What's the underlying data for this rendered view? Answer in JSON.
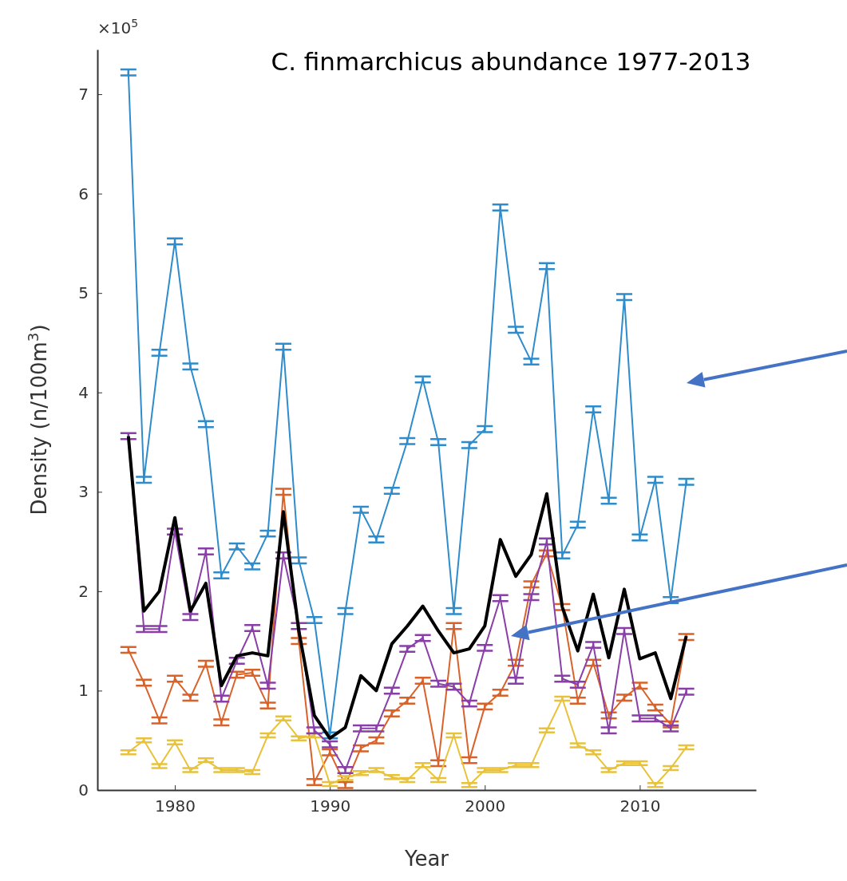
{
  "chart_data": {
    "type": "line",
    "title": "C. finmarchicus abundance 1977-2013",
    "xlabel": "Year",
    "ylabel": "Density (n/100m$^{3}$)",
    "annotations": [
      "×10$^{5}$"
    ],
    "x": [
      1977,
      1978,
      1979,
      1980,
      1981,
      1982,
      1983,
      1984,
      1985,
      1986,
      1987,
      1988,
      1989,
      1990,
      1991,
      1992,
      1993,
      1994,
      1995,
      1996,
      1997,
      1998,
      1999,
      2000,
      2001,
      2002,
      2003,
      2004,
      2005,
      2006,
      2007,
      2008,
      2009,
      2010,
      2011,
      2012,
      2013
    ],
    "xlim": [
      1975,
      2017.5
    ],
    "xticks": [
      1980,
      1990,
      2000,
      2010
    ],
    "ylim": [
      0,
      7.45
    ],
    "yticks": [
      0,
      1,
      2,
      3,
      4,
      5,
      6,
      7
    ],
    "grid": false,
    "marker": "none",
    "line_style": "solid",
    "series": [
      {
        "color": "#2e8ccc",
        "values": [
          7.22,
          3.12,
          4.4,
          5.52,
          4.26,
          3.68,
          2.16,
          2.45,
          2.25,
          2.58,
          4.46,
          2.31,
          1.71,
          0.55,
          1.8,
          2.82,
          2.52,
          3.01,
          3.51,
          4.13,
          3.5,
          1.8,
          3.47,
          3.63,
          5.86,
          4.63,
          4.31,
          5.27,
          2.36,
          2.67,
          3.83,
          2.91,
          4.96,
          2.54,
          3.12,
          1.91,
          3.1
        ],
        "errors": [
          0.03,
          0.03,
          0.03,
          0.03,
          0.03,
          0.03,
          0.03,
          0.03,
          0.03,
          0.03,
          0.03,
          0.03,
          0.03,
          0.03,
          0.03,
          0.03,
          0.03,
          0.03,
          0.03,
          0.03,
          0.03,
          0.03,
          0.03,
          0.03,
          0.03,
          0.03,
          0.03,
          0.03,
          0.03,
          0.03,
          0.03,
          0.03,
          0.03,
          0.03,
          0.03,
          0.03,
          0.03
        ]
      },
      {
        "color": "#d9622b",
        "values": [
          1.41,
          1.08,
          0.7,
          1.12,
          0.93,
          1.27,
          0.68,
          1.16,
          1.18,
          0.85,
          3.0,
          1.5,
          0.08,
          0.38,
          0.05,
          0.42,
          0.5,
          0.77,
          0.9,
          1.1,
          0.27,
          1.65,
          0.3,
          0.84,
          0.98,
          1.28,
          2.07,
          2.38,
          1.84,
          0.9,
          1.28,
          0.75,
          0.93,
          1.05,
          0.83,
          0.66,
          1.54
        ],
        "errors": [
          0.03,
          0.03,
          0.03,
          0.03,
          0.03,
          0.03,
          0.03,
          0.03,
          0.03,
          0.03,
          0.03,
          0.03,
          0.03,
          0.03,
          0.03,
          0.03,
          0.03,
          0.03,
          0.03,
          0.03,
          0.03,
          0.03,
          0.03,
          0.03,
          0.03,
          0.03,
          0.03,
          0.03,
          0.03,
          0.03,
          0.03,
          0.03,
          0.03,
          0.03,
          0.03,
          0.03,
          0.03
        ]
      },
      {
        "color": "#e8c23a",
        "values": [
          0.38,
          0.5,
          0.24,
          0.48,
          0.2,
          0.3,
          0.2,
          0.2,
          0.18,
          0.55,
          0.72,
          0.52,
          0.55,
          0.06,
          0.12,
          0.17,
          0.2,
          0.13,
          0.1,
          0.25,
          0.1,
          0.55,
          0.05,
          0.2,
          0.2,
          0.25,
          0.25,
          0.6,
          0.92,
          0.45,
          0.38,
          0.2,
          0.27,
          0.27,
          0.05,
          0.22,
          0.43
        ],
        "errors": [
          0.02,
          0.02,
          0.02,
          0.02,
          0.02,
          0.02,
          0.02,
          0.02,
          0.02,
          0.02,
          0.02,
          0.02,
          0.02,
          0.02,
          0.02,
          0.02,
          0.02,
          0.02,
          0.02,
          0.02,
          0.02,
          0.02,
          0.02,
          0.02,
          0.02,
          0.02,
          0.02,
          0.02,
          0.02,
          0.02,
          0.02,
          0.02,
          0.02,
          0.02,
          0.02,
          0.02,
          0.02
        ]
      },
      {
        "color": "#8a3fa8",
        "values": [
          3.56,
          1.62,
          1.62,
          2.6,
          1.74,
          2.4,
          0.92,
          1.3,
          1.63,
          1.05,
          2.36,
          1.65,
          0.6,
          0.46,
          0.2,
          0.62,
          0.62,
          1.0,
          1.42,
          1.53,
          1.07,
          1.04,
          0.87,
          1.43,
          1.93,
          1.1,
          1.94,
          2.5,
          1.12,
          1.06,
          1.46,
          0.6,
          1.6,
          0.72,
          0.72,
          0.62,
          0.99
        ],
        "errors": [
          0.03,
          0.03,
          0.03,
          0.03,
          0.03,
          0.03,
          0.03,
          0.03,
          0.03,
          0.03,
          0.03,
          0.03,
          0.03,
          0.03,
          0.03,
          0.03,
          0.03,
          0.03,
          0.03,
          0.03,
          0.03,
          0.03,
          0.03,
          0.03,
          0.03,
          0.03,
          0.03,
          0.03,
          0.03,
          0.03,
          0.03,
          0.03,
          0.03,
          0.03,
          0.03,
          0.03,
          0.03
        ]
      },
      {
        "color": "#000000",
        "values": [
          3.56,
          1.8,
          2.0,
          2.74,
          1.8,
          2.08,
          1.05,
          1.35,
          1.38,
          1.35,
          2.8,
          1.6,
          0.75,
          0.52,
          0.63,
          1.15,
          1.0,
          1.47,
          1.65,
          1.85,
          1.6,
          1.38,
          1.42,
          1.65,
          2.52,
          2.15,
          2.37,
          2.98,
          1.84,
          1.4,
          1.97,
          1.33,
          2.02,
          1.32,
          1.38,
          0.92,
          1.55
        ]
      }
    ]
  }
}
